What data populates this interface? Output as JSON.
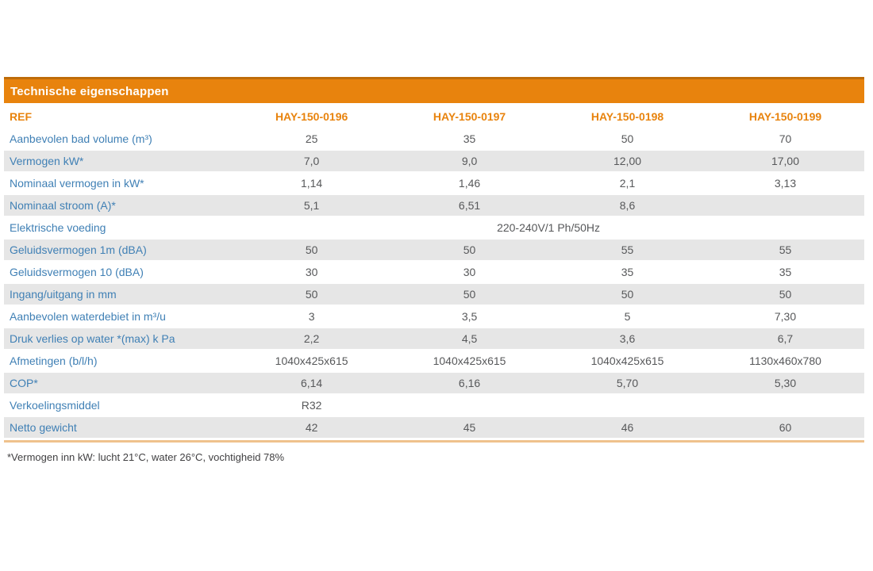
{
  "table": {
    "title": "Technische eigenschappen",
    "ref_label": "REF",
    "columns": [
      "HAY-150-0196",
      "HAY-150-0197",
      "HAY-150-0198",
      "HAY-150-0199"
    ],
    "rows": [
      {
        "label": "Aanbevolen bad volume (m³)",
        "values": [
          "25",
          "35",
          "50",
          "70"
        ]
      },
      {
        "label": "Vermogen kW*",
        "values": [
          "7,0",
          "9,0",
          "12,00",
          "17,00"
        ]
      },
      {
        "label": "Nominaal vermogen in kW*",
        "values": [
          "1,14",
          "1,46",
          "2,1",
          "3,13"
        ]
      },
      {
        "label": "Nominaal stroom (A)*",
        "values": [
          "5,1",
          "6,51",
          "8,6",
          ""
        ]
      },
      {
        "label": "Elektrische voeding",
        "span_value": "220-240V/1 Ph/50Hz"
      },
      {
        "label": "Geluidsvermogen 1m (dBA)",
        "values": [
          "50",
          "50",
          "55",
          "55"
        ]
      },
      {
        "label": "Geluidsvermogen 10 (dBA)",
        "values": [
          "30",
          "30",
          "35",
          "35"
        ]
      },
      {
        "label": "Ingang/uitgang in mm",
        "values": [
          "50",
          "50",
          "50",
          "50"
        ]
      },
      {
        "label": "Aanbevolen waterdebiet in m³/u",
        "values": [
          "3",
          "3,5",
          "5",
          "7,30"
        ]
      },
      {
        "label": "Druk verlies op water *(max) k Pa",
        "values": [
          "2,2",
          "4,5",
          "3,6",
          "6,7"
        ]
      },
      {
        "label": "Afmetingen (b/l/h)",
        "values": [
          "1040x425x615",
          "1040x425x615",
          "1040x425x615",
          "1130x460x780"
        ]
      },
      {
        "label": "COP*",
        "values": [
          "6,14",
          "6,16",
          "5,70",
          "5,30"
        ]
      },
      {
        "label": "Verkoelingsmiddel",
        "values": [
          "R32",
          "",
          "",
          ""
        ]
      },
      {
        "label": "Netto gewicht",
        "values": [
          "42",
          "45",
          "46",
          "60"
        ]
      }
    ],
    "footnote": "*Vermogen inn kW: lucht 21°C, water 26°C, vochtigheid 78%"
  },
  "colors": {
    "header_bar": "#E8830D",
    "header_bar_top_edge": "#BE6C09",
    "accent_orange_text": "#E8830D",
    "label_blue_text": "#4080B5",
    "value_text": "#57585A",
    "band_gray": "#E6E6E6",
    "bottom_rule_tan": "#EFC28D",
    "footnote_text": "#414042",
    "background": "#ffffff"
  }
}
